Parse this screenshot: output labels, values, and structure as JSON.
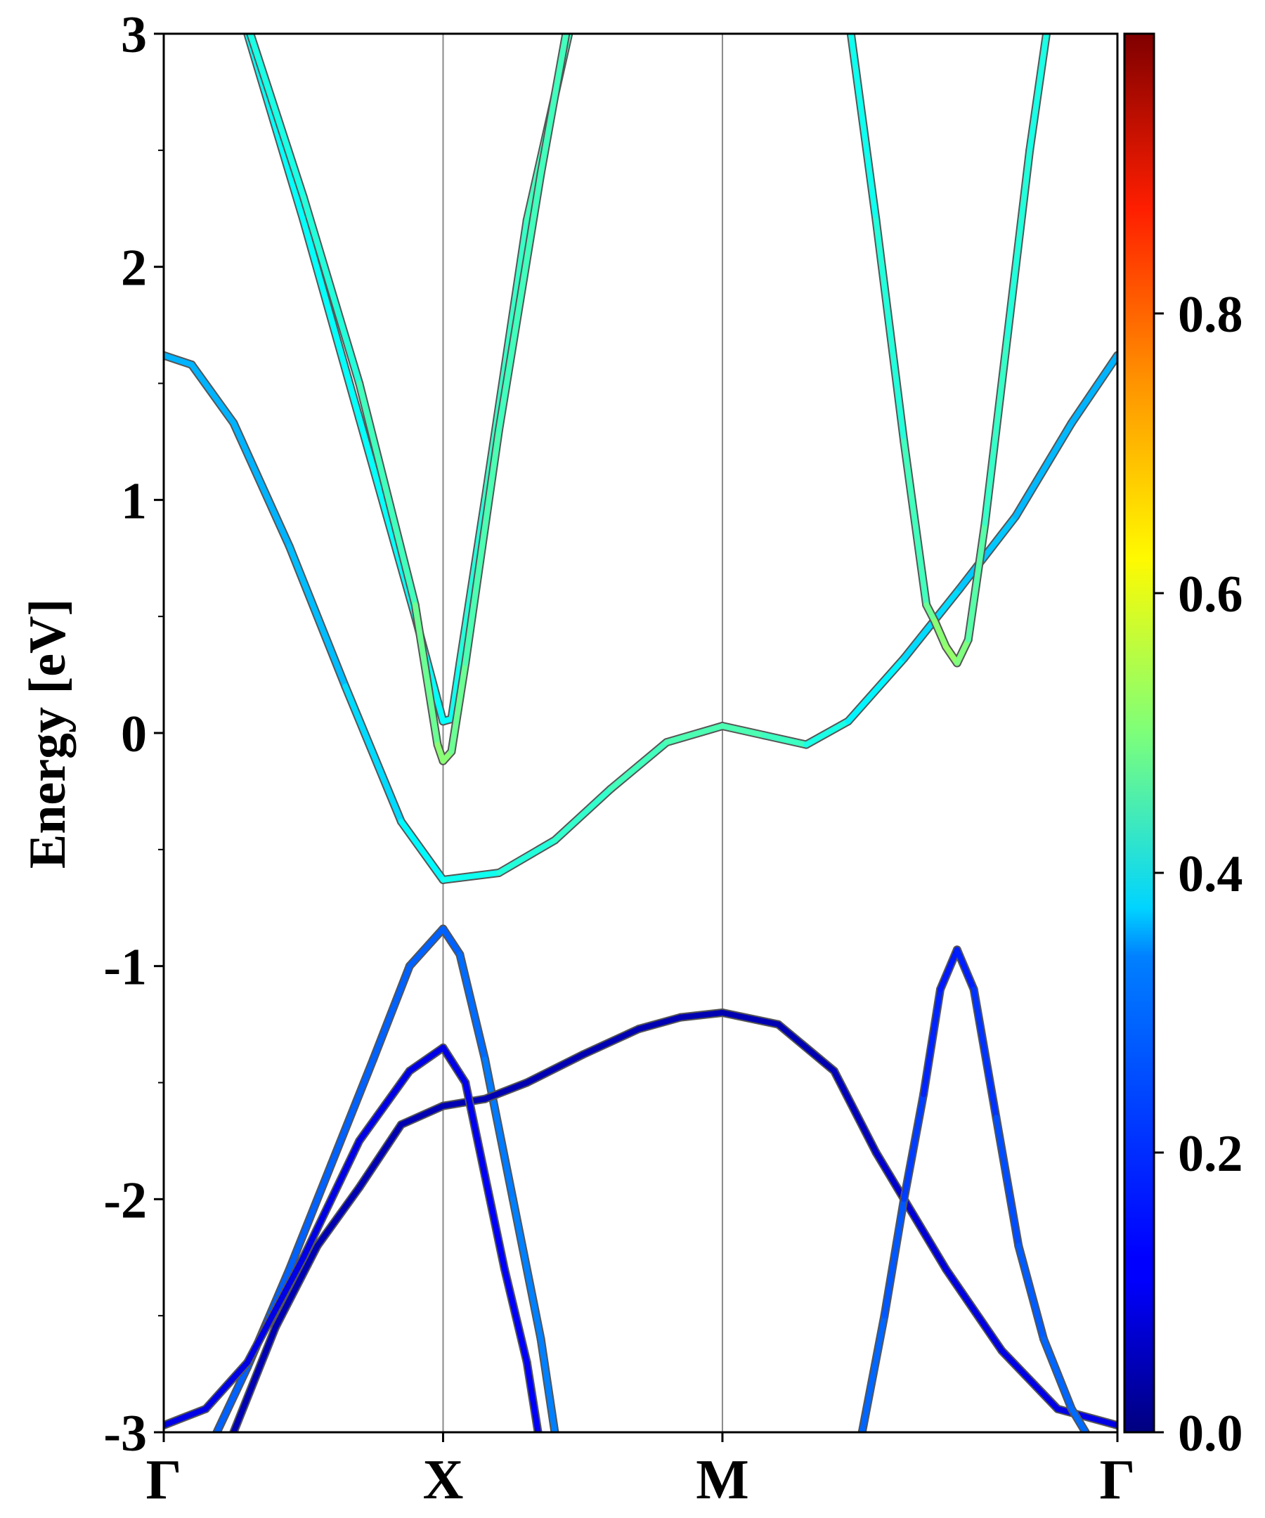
{
  "chart_data": {
    "type": "line",
    "title": "",
    "ylabel": "Energy [eV]",
    "xlabel": "",
    "ylim": [
      -3,
      3
    ],
    "y_ticks": [
      "-3",
      "-2",
      "-1",
      "0",
      "1",
      "2",
      "3"
    ],
    "k_points": [
      "Γ",
      "X",
      "M",
      "Γ"
    ],
    "k_positions": [
      0,
      1,
      2,
      3.414
    ],
    "colorbar": {
      "colormap": "jet",
      "range": [
        0.0,
        1.0
      ],
      "ticks": [
        "0.0",
        "0.2",
        "0.4",
        "0.6",
        "0.8"
      ]
    },
    "series": [
      {
        "points": [
          [
            0.19,
            -3.0
          ],
          [
            0.3,
            -2.72
          ],
          [
            0.45,
            -2.3
          ],
          [
            0.6,
            -1.85
          ],
          [
            0.75,
            -1.4
          ],
          [
            0.88,
            -1.0
          ],
          [
            1.0,
            -0.84
          ],
          [
            1.06,
            -0.95
          ],
          [
            1.15,
            -1.4
          ],
          [
            1.25,
            -2.0
          ],
          [
            1.35,
            -2.6
          ],
          [
            1.4,
            -3.0
          ]
        ],
        "weights": [
          0.22,
          0.22,
          0.22,
          0.22,
          0.22,
          0.22,
          0.22,
          0.22,
          0.24,
          0.25,
          0.25,
          0.25
        ]
      },
      {
        "points": [
          [
            0.25,
            -3.0
          ],
          [
            0.4,
            -2.55
          ],
          [
            0.55,
            -2.2
          ],
          [
            0.7,
            -1.95
          ],
          [
            0.85,
            -1.68
          ],
          [
            1.0,
            -1.6
          ],
          [
            1.15,
            -1.57
          ],
          [
            1.3,
            -1.5
          ],
          [
            1.5,
            -1.38
          ],
          [
            1.7,
            -1.27
          ],
          [
            1.85,
            -1.22
          ],
          [
            2.0,
            -1.2
          ],
          [
            2.2,
            -1.25
          ],
          [
            2.4,
            -1.45
          ],
          [
            2.55,
            -1.8
          ],
          [
            2.65,
            -2.0
          ],
          [
            2.8,
            -2.3
          ],
          [
            3.0,
            -2.65
          ],
          [
            3.2,
            -2.9
          ],
          [
            3.414,
            -2.97
          ]
        ],
        "weights": [
          0.05,
          0.05,
          0.05,
          0.05,
          0.05,
          0.05,
          0.05,
          0.05,
          0.05,
          0.05,
          0.05,
          0.05,
          0.05,
          0.05,
          0.07,
          0.08,
          0.09,
          0.1,
          0.1,
          0.1
        ]
      },
      {
        "points": [
          [
            0.0,
            -2.97
          ],
          [
            0.15,
            -2.9
          ],
          [
            0.3,
            -2.7
          ],
          [
            0.5,
            -2.25
          ],
          [
            0.7,
            -1.75
          ],
          [
            0.88,
            -1.45
          ],
          [
            1.0,
            -1.35
          ],
          [
            1.08,
            -1.5
          ],
          [
            1.15,
            -1.9
          ],
          [
            1.22,
            -2.3
          ],
          [
            1.3,
            -2.7
          ],
          [
            1.34,
            -3.0
          ]
        ],
        "weights": [
          0.1,
          0.1,
          0.1,
          0.1,
          0.1,
          0.1,
          0.1,
          0.1,
          0.12,
          0.12,
          0.12,
          0.12
        ]
      },
      {
        "points": [
          [
            2.5,
            -3.0
          ],
          [
            2.58,
            -2.5
          ],
          [
            2.65,
            -2.0
          ],
          [
            2.72,
            -1.55
          ],
          [
            2.78,
            -1.1
          ],
          [
            2.84,
            -0.93
          ],
          [
            2.9,
            -1.1
          ],
          [
            2.98,
            -1.65
          ],
          [
            3.06,
            -2.2
          ],
          [
            3.15,
            -2.6
          ],
          [
            3.25,
            -2.9
          ],
          [
            3.3,
            -3.0
          ]
        ],
        "weights": [
          0.23,
          0.22,
          0.2,
          0.17,
          0.15,
          0.15,
          0.16,
          0.19,
          0.21,
          0.22,
          0.23,
          0.23
        ]
      },
      {
        "points": [
          [
            0.0,
            1.62
          ],
          [
            0.1,
            1.58
          ],
          [
            0.25,
            1.33
          ],
          [
            0.45,
            0.8
          ],
          [
            0.65,
            0.2
          ],
          [
            0.85,
            -0.38
          ],
          [
            1.0,
            -0.63
          ],
          [
            1.2,
            -0.6
          ],
          [
            1.4,
            -0.46
          ],
          [
            1.6,
            -0.24
          ],
          [
            1.8,
            -0.04
          ],
          [
            2.0,
            0.03
          ],
          [
            2.15,
            -0.01
          ],
          [
            2.3,
            -0.05
          ],
          [
            2.45,
            0.05
          ],
          [
            2.65,
            0.32
          ],
          [
            2.85,
            0.62
          ],
          [
            3.05,
            0.93
          ],
          [
            3.25,
            1.33
          ],
          [
            3.414,
            1.62
          ]
        ],
        "weights": [
          0.3,
          0.3,
          0.3,
          0.3,
          0.32,
          0.36,
          0.38,
          0.4,
          0.42,
          0.43,
          0.45,
          0.45,
          0.45,
          0.42,
          0.38,
          0.35,
          0.33,
          0.31,
          0.3,
          0.3
        ]
      },
      {
        "points": [
          [
            0.3,
            3.0
          ],
          [
            0.5,
            2.2
          ],
          [
            0.7,
            1.35
          ],
          [
            0.9,
            0.5
          ],
          [
            1.0,
            0.05
          ],
          [
            1.03,
            0.06
          ],
          [
            1.06,
            0.3
          ],
          [
            1.15,
            1.0
          ],
          [
            1.3,
            2.2
          ],
          [
            1.45,
            3.0
          ]
        ],
        "weights": [
          0.38,
          0.38,
          0.38,
          0.38,
          0.38,
          0.38,
          0.4,
          0.42,
          0.44,
          0.44
        ]
      },
      {
        "points": [
          [
            0.31,
            3.0
          ],
          [
            0.5,
            2.3
          ],
          [
            0.7,
            1.5
          ],
          [
            0.9,
            0.55
          ],
          [
            0.98,
            -0.05
          ],
          [
            1.0,
            -0.12
          ],
          [
            1.03,
            -0.08
          ],
          [
            1.08,
            0.3
          ],
          [
            1.2,
            1.3
          ],
          [
            1.35,
            2.4
          ],
          [
            1.44,
            3.0
          ]
        ],
        "weights": [
          0.4,
          0.4,
          0.42,
          0.46,
          0.5,
          0.52,
          0.5,
          0.46,
          0.44,
          0.44,
          0.44
        ]
      },
      {
        "points": [
          [
            2.46,
            3.0
          ],
          [
            2.55,
            2.2
          ],
          [
            2.65,
            1.25
          ],
          [
            2.73,
            0.55
          ],
          [
            2.76,
            0.48
          ],
          [
            2.8,
            0.37
          ],
          [
            2.84,
            0.3
          ],
          [
            2.88,
            0.4
          ],
          [
            2.94,
            0.9
          ],
          [
            3.02,
            1.7
          ],
          [
            3.1,
            2.5
          ],
          [
            3.16,
            3.0
          ]
        ],
        "weights": [
          0.38,
          0.4,
          0.42,
          0.46,
          0.5,
          0.52,
          0.52,
          0.48,
          0.44,
          0.42,
          0.4,
          0.4
        ]
      }
    ]
  }
}
